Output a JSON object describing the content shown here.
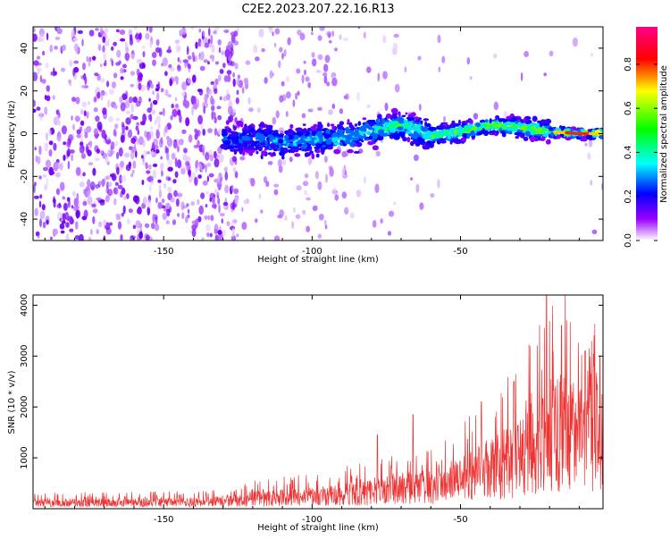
{
  "title": "C2E2.2023.207.22.16.R13",
  "chart_data": [
    {
      "type": "heatmap",
      "xlabel": "Height of straight line (km)",
      "ylabel": "Frequency (Hz)",
      "xlim": [
        -194,
        -2
      ],
      "ylim": [
        -50,
        50
      ],
      "xticks": [
        -150,
        -100,
        -50
      ],
      "yticks": [
        -40,
        -20,
        0,
        20,
        40
      ],
      "ridge": [
        {
          "x": -130,
          "y": -3
        },
        {
          "x": -120,
          "y": -2
        },
        {
          "x": -110,
          "y": -4
        },
        {
          "x": -100,
          "y": -3
        },
        {
          "x": -90,
          "y": -2
        },
        {
          "x": -80,
          "y": 1
        },
        {
          "x": -70,
          "y": 4
        },
        {
          "x": -60,
          "y": -1
        },
        {
          "x": -50,
          "y": 1
        },
        {
          "x": -40,
          "y": 4
        },
        {
          "x": -30,
          "y": 3
        },
        {
          "x": -20,
          "y": 1
        },
        {
          "x": -10,
          "y": 0
        },
        {
          "x": -2,
          "y": 0
        }
      ],
      "colorbar": {
        "label": "Normalized spectral amplitude",
        "range": [
          0,
          0.97
        ],
        "ticks": [
          0.0,
          0.2,
          0.4,
          0.6,
          0.8
        ],
        "colors": [
          "#ffffff",
          "#8a00ff",
          "#0000ff",
          "#00ffff",
          "#00ff00",
          "#ffff00",
          "#ff0000",
          "#ff0088"
        ]
      }
    },
    {
      "type": "line",
      "xlabel": "Height of straight line (km)",
      "ylabel": "SNR (10 * v/v)",
      "xlim": [
        -194,
        -2
      ],
      "ylim": [
        0,
        4200
      ],
      "xticks": [
        -150,
        -100,
        -50
      ],
      "yticks": [
        1000,
        2000,
        3000,
        4000
      ],
      "color": "#ee3333",
      "envelope": [
        {
          "x": -194,
          "y": 150
        },
        {
          "x": -160,
          "y": 160
        },
        {
          "x": -130,
          "y": 180
        },
        {
          "x": -120,
          "y": 280
        },
        {
          "x": -100,
          "y": 330
        },
        {
          "x": -80,
          "y": 450
        },
        {
          "x": -70,
          "y": 600
        },
        {
          "x": -60,
          "y": 550
        },
        {
          "x": -50,
          "y": 800
        },
        {
          "x": -40,
          "y": 1100
        },
        {
          "x": -30,
          "y": 1400
        },
        {
          "x": -22,
          "y": 1800
        },
        {
          "x": -18,
          "y": 2200
        },
        {
          "x": -12,
          "y": 2000
        },
        {
          "x": -2,
          "y": 2100
        }
      ],
      "peaks": [
        {
          "x": -78,
          "y": 1450
        },
        {
          "x": -66,
          "y": 1850
        },
        {
          "x": -43,
          "y": 2100
        },
        {
          "x": -32,
          "y": 2500
        },
        {
          "x": -21,
          "y": 4200
        },
        {
          "x": -16,
          "y": 3600
        },
        {
          "x": -8,
          "y": 3100
        },
        {
          "x": -3,
          "y": 3000
        }
      ]
    }
  ]
}
